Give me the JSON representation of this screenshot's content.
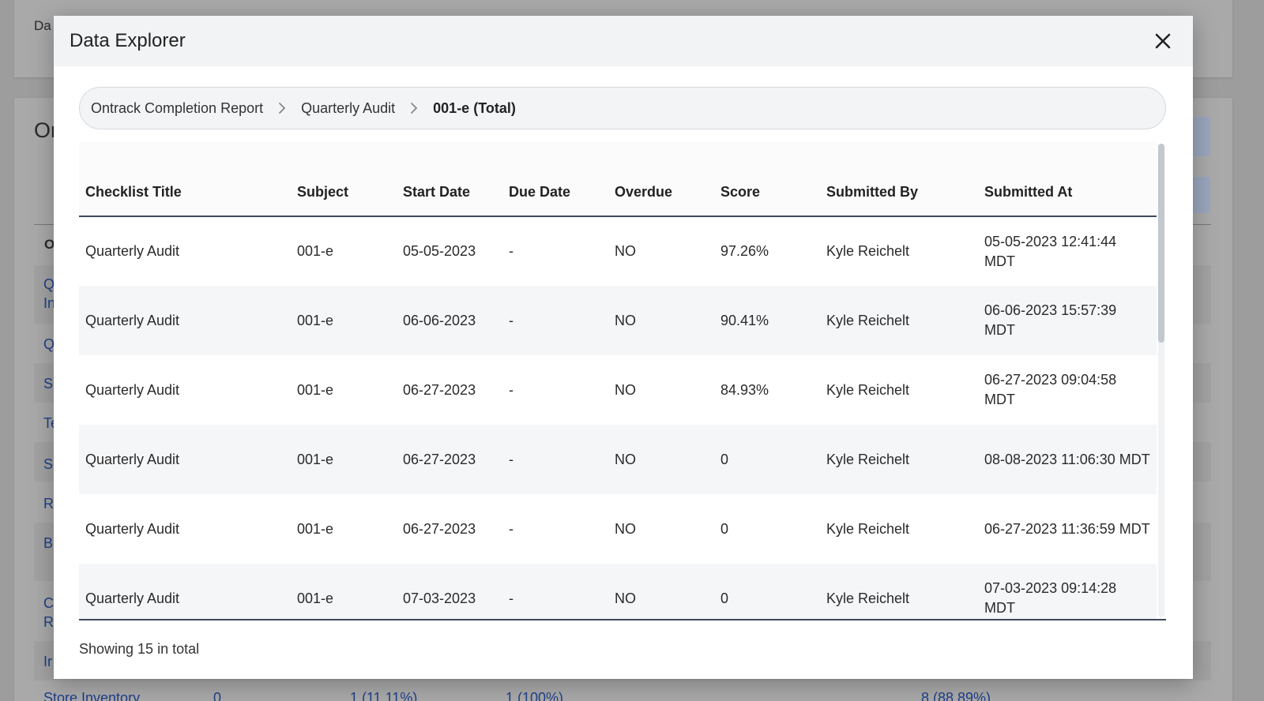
{
  "background": {
    "header_fragment": "Da",
    "section_title_fragment": "Or",
    "column_header_fragment": "O",
    "row_fragments": [
      "Q",
      "In",
      "Q",
      "Se",
      "Te",
      "Se",
      "R",
      "B",
      "C",
      "R",
      "Ir"
    ],
    "bottom_row": {
      "label": "Store Inventory",
      "values": [
        "0",
        "1 (11.11%)",
        "1 (100%)",
        "8 (88.89%)"
      ]
    }
  },
  "modal": {
    "title": "Data Explorer",
    "close_icon": "close-icon",
    "breadcrumb": [
      {
        "label": "Ontrack Completion Report"
      },
      {
        "label": "Quarterly Audit"
      },
      {
        "label": "001-e (Total)"
      }
    ],
    "separator_icon": "chevron-right-icon",
    "table": {
      "columns": [
        "Checklist Title",
        "Subject",
        "Start Date",
        "Due Date",
        "Overdue",
        "Score",
        "Submitted By",
        "Submitted At"
      ],
      "rows": [
        [
          "Quarterly Audit",
          "001-e",
          "05-05-2023",
          "-",
          "NO",
          "97.26%",
          "Kyle Reichelt",
          "05-05-2023 12:41:44 MDT"
        ],
        [
          "Quarterly Audit",
          "001-e",
          "06-06-2023",
          "-",
          "NO",
          "90.41%",
          "Kyle Reichelt",
          "06-06-2023 15:57:39 MDT"
        ],
        [
          "Quarterly Audit",
          "001-e",
          "06-27-2023",
          "-",
          "NO",
          "84.93%",
          "Kyle Reichelt",
          "06-27-2023 09:04:58 MDT"
        ],
        [
          "Quarterly Audit",
          "001-e",
          "06-27-2023",
          "-",
          "NO",
          "0",
          "Kyle Reichelt",
          "08-08-2023 11:06:30 MDT"
        ],
        [
          "Quarterly Audit",
          "001-e",
          "06-27-2023",
          "-",
          "NO",
          "0",
          "Kyle Reichelt",
          "06-27-2023 11:36:59 MDT"
        ],
        [
          "Quarterly Audit",
          "001-e",
          "07-03-2023",
          "-",
          "NO",
          "0",
          "Kyle Reichelt",
          "07-03-2023 09:14:28 MDT"
        ]
      ]
    },
    "footer": "Showing 15 in total"
  },
  "colors": {
    "overlay": "#9d9d9d",
    "header_bg": "#f2f3f5",
    "stripe": "#f5f6f8",
    "link": "#1f3f8a",
    "rule": "#3d4a5c"
  }
}
